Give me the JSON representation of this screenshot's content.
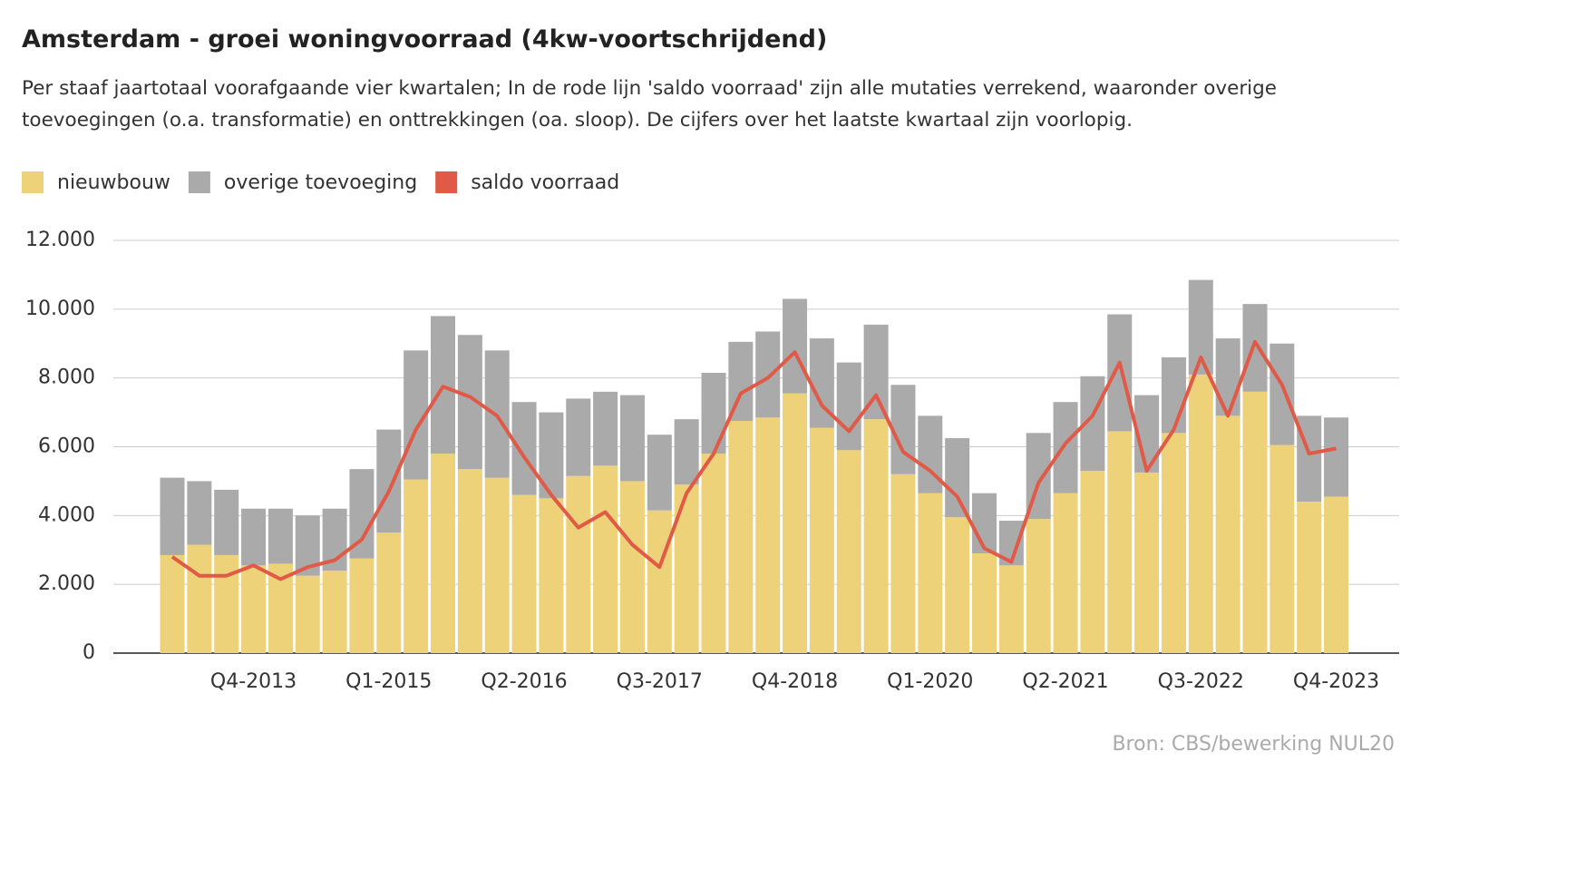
{
  "chart_data": {
    "type": "bar",
    "stacked": true,
    "title": "Amsterdam - groei woningvoorraad (4kw-voortschrijdend)",
    "subtitle": "Per staaf jaartotaal voorafgaande vier kwartalen; In de rode lijn 'saldo voorraad' zijn alle mutaties verrekend, waaronder overige toevoegingen (o.a. transformatie) en onttrekkingen (oa. sloop). De cijfers over het laatste kwartaal zijn voorlopig.",
    "source": "Bron:  CBS/bewerking NUL20",
    "categories": [
      null,
      null,
      null,
      "Q4-2013",
      null,
      null,
      null,
      null,
      "Q1-2015",
      null,
      null,
      null,
      null,
      "Q2-2016",
      null,
      null,
      null,
      null,
      "Q3-2017",
      null,
      null,
      null,
      null,
      "Q4-2018",
      null,
      null,
      null,
      null,
      "Q1-2020",
      null,
      null,
      null,
      null,
      "Q2-2021",
      null,
      null,
      null,
      null,
      "Q3-2022",
      null,
      null,
      null,
      null,
      "Q4-2023"
    ],
    "series": [
      {
        "name": "nieuwbouw",
        "color": "#edd27a",
        "type": "bar",
        "values": [
          2850,
          3150,
          2850,
          2550,
          2600,
          2250,
          2400,
          2750,
          3500,
          5050,
          5800,
          5350,
          5100,
          4600,
          4500,
          5150,
          5450,
          5000,
          4150,
          4900,
          5800,
          6750,
          6850,
          7550,
          6550,
          5900,
          6800,
          5200,
          4650,
          3950,
          2900,
          2550,
          3900,
          4650,
          5300,
          6450,
          5250,
          6400,
          8100,
          6900,
          7600,
          6050,
          4400,
          4550
        ]
      },
      {
        "name": "overige toevoeging",
        "color": "#aaaaaa",
        "type": "bar",
        "values": [
          2250,
          1850,
          1900,
          1650,
          1600,
          1750,
          1800,
          2600,
          3000,
          3750,
          4000,
          3900,
          3700,
          2700,
          2500,
          2250,
          2150,
          2500,
          2200,
          1900,
          2350,
          2300,
          2500,
          2750,
          2600,
          2550,
          2750,
          2600,
          2250,
          2300,
          1750,
          1300,
          2500,
          2650,
          2750,
          3400,
          2250,
          2200,
          2750,
          2250,
          2550,
          2950,
          2500,
          2300
        ]
      },
      {
        "name": "saldo voorraad",
        "color": "#e05a47",
        "type": "line",
        "values": [
          2800,
          2250,
          2250,
          2550,
          2150,
          2500,
          2700,
          3300,
          4700,
          6500,
          7750,
          7450,
          6900,
          5700,
          4600,
          3650,
          4100,
          3150,
          2500,
          4650,
          5800,
          7550,
          8000,
          8750,
          7200,
          6450,
          7500,
          5850,
          5300,
          4550,
          3050,
          2650,
          4950,
          6100,
          6900,
          8450,
          5300,
          6500,
          8600,
          6900,
          9050,
          7800,
          5800,
          5950
        ]
      }
    ],
    "ylim": [
      0,
      12000
    ],
    "yticks": [
      0,
      {
        "value": 2000,
        "label": "2.000"
      },
      {
        "value": 4000,
        "label": "4.000"
      },
      {
        "value": 6000,
        "label": "6.000"
      },
      {
        "value": 8000,
        "label": "8.000"
      },
      {
        "value": 10000,
        "label": "10.000"
      },
      {
        "value": 12000,
        "label": "12.000"
      }
    ],
    "grid": true
  }
}
